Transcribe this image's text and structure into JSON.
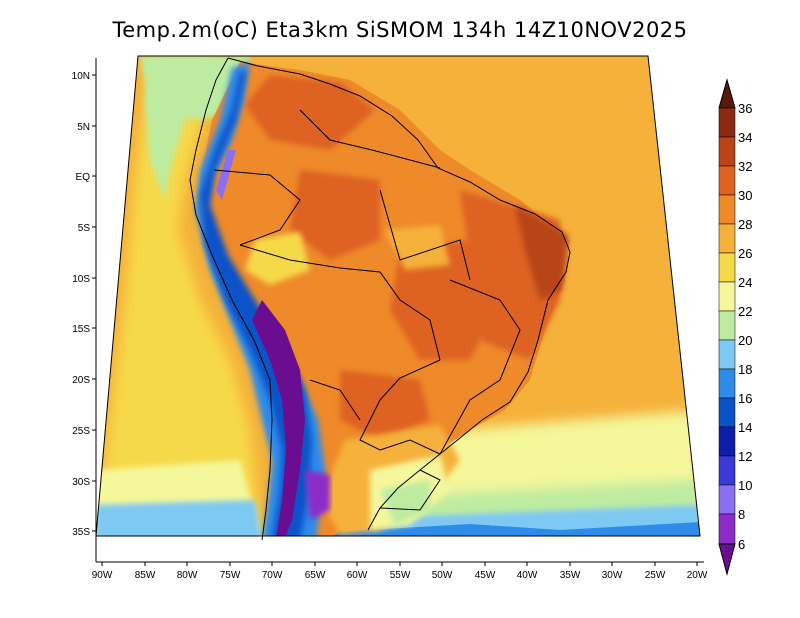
{
  "title": "Temp.2m(oC) Eta3km SiSMOM 134h 14Z10NOV2025",
  "map": {
    "variable": "2m temperature",
    "unit": "oC",
    "lat_labels": [
      "10N",
      "5N",
      "EQ",
      "5S",
      "10S",
      "15S",
      "20S",
      "25S",
      "30S",
      "35S"
    ],
    "lon_labels": [
      "90W",
      "85W",
      "80W",
      "75W",
      "70W",
      "65W",
      "60W",
      "55W",
      "50W",
      "45W",
      "40W",
      "35W",
      "30W",
      "25W",
      "20W"
    ]
  },
  "colorbar": {
    "levels": [
      "6",
      "8",
      "10",
      "12",
      "14",
      "16",
      "18",
      "20",
      "22",
      "24",
      "26",
      "28",
      "30",
      "32",
      "34",
      "36"
    ],
    "colors": [
      "#6a0d91",
      "#8d2bc9",
      "#8c6ef0",
      "#3a3ad8",
      "#0d1ea8",
      "#0a52c8",
      "#2f8bea",
      "#7ec8f4",
      "#bdeca0",
      "#f4f79a",
      "#f6d948",
      "#f5b13a",
      "#ee8a2a",
      "#de6220",
      "#b84418",
      "#8a2a10",
      "#5a1a0a"
    ]
  },
  "legend": {
    "six": "6",
    "eight": "8",
    "ten": "10",
    "twelve": "12",
    "fourteen": "14",
    "sixteen": "16",
    "eighteen": "18",
    "twenty": "20",
    "twentytwo": "22",
    "twentyfour": "24",
    "twentysix": "26",
    "twentyeight": "28",
    "thirty": "30",
    "thirtytwo": "32",
    "thirtyfour": "34",
    "thirtysix": "36"
  }
}
